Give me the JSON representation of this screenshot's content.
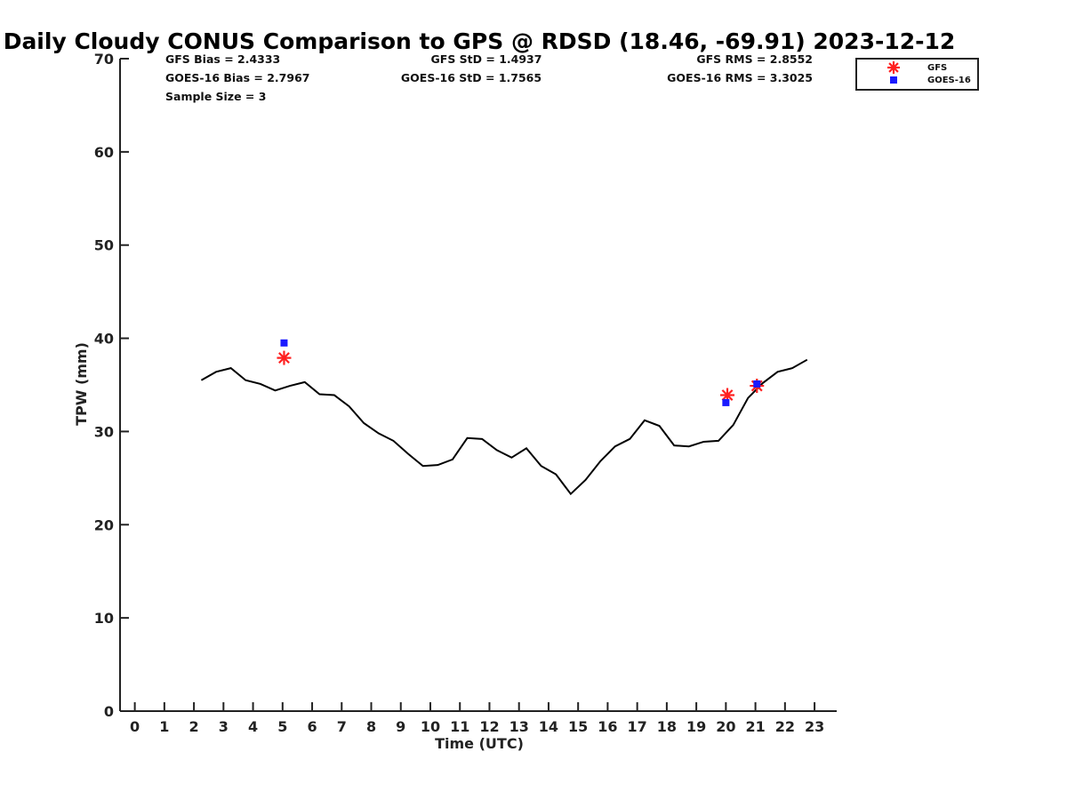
{
  "chart_data": {
    "type": "scatter",
    "title": "Daily Cloudy CONUS Comparison to GPS @ RDSD (18.46, -69.91) 2023-12-12",
    "xlabel": "Time (UTC)",
    "ylabel": "TPW (mm)",
    "xlim": [
      -0.5,
      23.75
    ],
    "ylim": [
      0,
      70
    ],
    "xticks": [
      "0",
      "1",
      "2",
      "3",
      "4",
      "5",
      "6",
      "7",
      "8",
      "9",
      "10",
      "11",
      "12",
      "13",
      "14",
      "15",
      "16",
      "17",
      "18",
      "19",
      "20",
      "21",
      "22",
      "23"
    ],
    "yticks": [
      "0",
      "10",
      "20",
      "30",
      "40",
      "50",
      "60",
      "70"
    ],
    "grid": false,
    "legend_position": "top-right",
    "stats": {
      "gfs_bias": "GFS Bias = 2.4333",
      "goes_bias": "GOES-16 Bias = 2.7967",
      "sample_size": "Sample Size = 3",
      "gfs_std": "GFS StD = 1.4937",
      "goes_std": "GOES-16 StD = 1.7565",
      "gfs_rms": "GFS RMS = 2.8552",
      "goes_rms": "GOES-16 RMS = 3.3025"
    },
    "series": [
      {
        "name": "",
        "kind": "line",
        "color": "#000000",
        "x": [
          2.25,
          2.75,
          3.25,
          3.75,
          4.25,
          4.75,
          5.25,
          5.75,
          6.25,
          6.75,
          7.25,
          7.75,
          8.25,
          8.75,
          9.25,
          9.75,
          10.25,
          10.75,
          11.25,
          11.75,
          12.25,
          12.75,
          13.25,
          13.75,
          14.25,
          14.75,
          15.25,
          15.75,
          16.25,
          16.75,
          17.25,
          17.75,
          18.25,
          18.75,
          19.25,
          19.75,
          20.25,
          20.75,
          21.25,
          21.75,
          22.25,
          22.75
        ],
        "y": [
          35.5,
          36.4,
          36.8,
          35.5,
          35.1,
          34.4,
          34.9,
          35.3,
          34.0,
          33.9,
          32.7,
          30.9,
          29.8,
          29.0,
          27.6,
          26.3,
          26.4,
          27.0,
          29.3,
          29.2,
          28.0,
          27.2,
          28.2,
          26.3,
          25.4,
          23.3,
          24.8,
          26.8,
          28.4,
          29.2,
          31.2,
          30.6,
          28.5,
          28.4,
          28.9,
          29.0,
          30.7,
          33.6,
          35.2,
          36.4,
          36.8,
          37.7
        ]
      },
      {
        "name": "GFS",
        "kind": "marker",
        "marker": "asterisk",
        "color": "#ff2020",
        "x": [
          5.05,
          20.05,
          21.05
        ],
        "y": [
          37.9,
          33.9,
          34.9
        ]
      },
      {
        "name": "GOES-16",
        "kind": "marker",
        "marker": "square",
        "color": "#1a1aff",
        "x": [
          5.05,
          20.0,
          21.05
        ],
        "y": [
          39.5,
          33.1,
          35.1
        ]
      }
    ]
  }
}
